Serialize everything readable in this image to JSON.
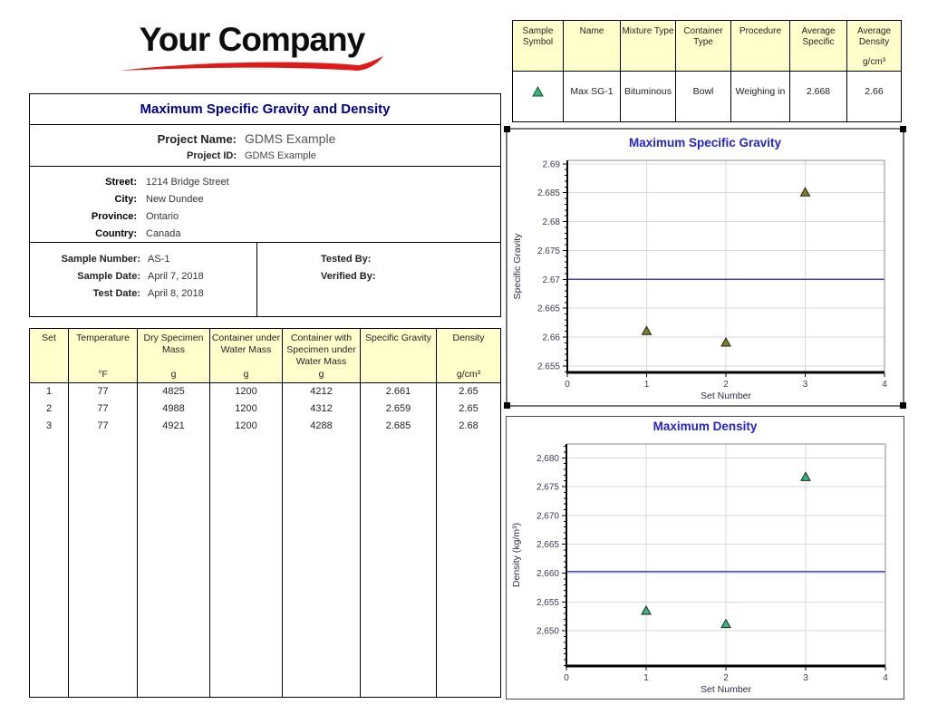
{
  "logo": {
    "text": "Your Company",
    "swoosh_color": "#E01919"
  },
  "report": {
    "title": "Maximum Specific Gravity and Density",
    "project": {
      "name_label": "Project Name:",
      "name_value": "GDMS Example",
      "id_label": "Project ID:",
      "id_value": "GDMS Example"
    },
    "address": [
      {
        "label": "Street:",
        "value": "1214 Bridge Street"
      },
      {
        "label": "City:",
        "value": "New Dundee"
      },
      {
        "label": "Province:",
        "value": "Ontario"
      },
      {
        "label": "Country:",
        "value": "Canada"
      }
    ],
    "sample": [
      {
        "label": "Sample Number:",
        "value": "AS-1"
      },
      {
        "label": "Sample Date:",
        "value": "April 7, 2018"
      },
      {
        "label": "Test Date:",
        "value": "April 8, 2018"
      }
    ],
    "signoff": [
      {
        "label": "Tested By:",
        "value": ""
      },
      {
        "label": "Verified By:",
        "value": ""
      }
    ]
  },
  "results_table": {
    "headers": [
      "Set",
      "Temperature",
      "Dry Specimen\nMass",
      "Container under\nWater Mass",
      "Container with\nSpecimen under\nWater Mass",
      "Specific Gravity",
      "Density"
    ],
    "units": [
      "",
      "°F",
      "g",
      "g",
      "g",
      "",
      "g/cm³"
    ],
    "rows": [
      [
        "1",
        "77",
        "4825",
        "1200",
        "4212",
        "2.661",
        "2.65"
      ],
      [
        "2",
        "77",
        "4988",
        "1200",
        "4312",
        "2.659",
        "2.65"
      ],
      [
        "3",
        "77",
        "4921",
        "1200",
        "4288",
        "2.685",
        "2.68"
      ]
    ]
  },
  "summary_table": {
    "headers": [
      "Sample\nSymbol",
      "Name",
      "Mixture Type",
      "Container\nType",
      "Procedure",
      "Average\nSpecific",
      "Average\nDensity"
    ],
    "units": [
      "",
      "",
      "",
      "",
      "",
      "",
      "g/cm³"
    ],
    "symbol_color": "#2EB878",
    "row": [
      "",
      "Max SG-1",
      "Bituminous",
      "Bowl",
      "Weighing in",
      "2.668",
      "2.66"
    ]
  },
  "colors": {
    "header_fill": "#FFFFCC",
    "report_title": "#00008B",
    "chart_title": "#2424CC",
    "refline": "#4040C0",
    "marker_sg": "#7E7E1A",
    "marker_density": "#2EB878",
    "logo_swoosh": "#E01919"
  },
  "chart_data": [
    {
      "type": "scatter",
      "title": "Maximum Specific Gravity",
      "xlabel": "Set Number",
      "ylabel": "Specific Gravity",
      "series": [
        {
          "name": "Max SG-1",
          "x": [
            1,
            2,
            3
          ],
          "y": [
            2.661,
            2.659,
            2.685
          ]
        }
      ],
      "x": [
        1,
        2,
        3
      ],
      "y": [
        2.661,
        2.659,
        2.685
      ],
      "refline": {
        "value": 2.67,
        "color": "#4040C0"
      },
      "xlim": [
        0,
        4
      ],
      "ylim": [
        2.6539,
        2.6906
      ],
      "xticks": [
        0,
        1,
        2,
        3,
        4
      ],
      "yticks": [
        {
          "v": 2.69,
          "label": "2.69"
        },
        {
          "v": 2.685,
          "label": "2.685"
        },
        {
          "v": 2.68,
          "label": "2.68"
        },
        {
          "v": 2.675,
          "label": "2.675"
        },
        {
          "v": 2.67,
          "label": "2.67"
        },
        {
          "v": 2.665,
          "label": "2.665"
        },
        {
          "v": 2.66,
          "label": "2.66"
        },
        {
          "v": 2.655,
          "label": "2.655"
        }
      ],
      "y_minor_step": 0.001,
      "grid": true,
      "legend": "none",
      "marker": "triangle",
      "marker_color": "#7E7E1A",
      "grid_color": "#D9D9D9",
      "tick_color": "#3A3A52",
      "axis_label_color": "#2B2B44",
      "title_color": "#2424CC"
    },
    {
      "type": "scatter",
      "title": "Maximum Density",
      "xlabel": "Set Number",
      "ylabel": "Density (kg/m³)",
      "series": [
        {
          "name": "Max SG-1",
          "x": [
            1,
            2,
            3
          ],
          "y": [
            2653.4,
            2651.1,
            2676.6
          ]
        }
      ],
      "x": [
        1,
        2,
        3
      ],
      "y": [
        2653.4,
        2651.1,
        2676.6
      ],
      "refline": {
        "value": 2660.3,
        "color": "#4040C0"
      },
      "xlim": [
        0,
        4
      ],
      "ylim": [
        2643.9,
        2682.4
      ],
      "xticks": [
        0,
        1,
        2,
        3,
        4
      ],
      "yticks": [
        {
          "v": 2680,
          "label": "2,680"
        },
        {
          "v": 2675,
          "label": "2,675"
        },
        {
          "v": 2670,
          "label": "2,670"
        },
        {
          "v": 2665,
          "label": "2,665"
        },
        {
          "v": 2660,
          "label": "2,660"
        },
        {
          "v": 2655,
          "label": "2,655"
        },
        {
          "v": 2650,
          "label": "2,650"
        }
      ],
      "y_minor_step": 1,
      "grid": true,
      "legend": "none",
      "marker": "triangle",
      "marker_color": "#2EB878",
      "grid_color": "#D9D9D9",
      "tick_color": "#3A3A52",
      "axis_label_color": "#2B2B44",
      "title_color": "#2424CC"
    }
  ]
}
